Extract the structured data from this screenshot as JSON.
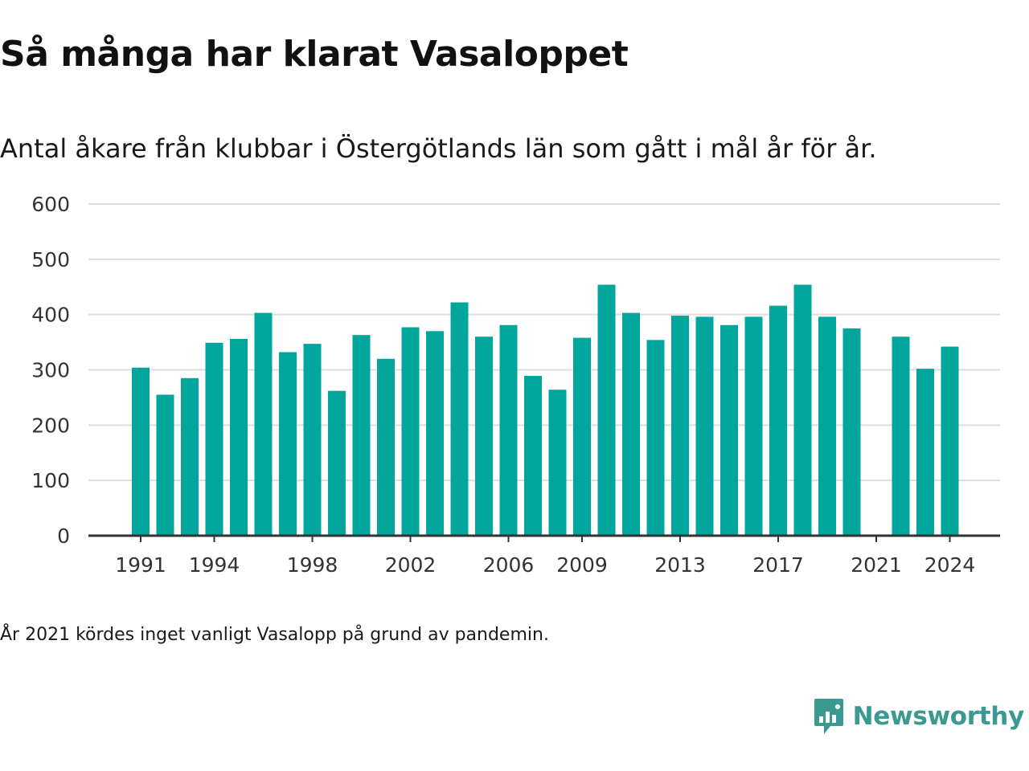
{
  "title": "Så många har klarat Vasaloppet",
  "subtitle": "Antal åkare från klubbar i Östergötlands län som gått i mål år för år.",
  "note": "År 2021 kördes inget vanligt Vasalopp på grund av pandemin.",
  "brand": {
    "name": "Newsworthy",
    "logo_icon": "newsworthy-logo-icon",
    "color": "#3a9a92"
  },
  "colors": {
    "bar": "#00a59b",
    "grid": "#dddddd",
    "axis": "#333333",
    "text": "#333333"
  },
  "chart_data": {
    "type": "bar",
    "title": "",
    "xlabel": "",
    "ylabel": "",
    "ylim": [
      0,
      600
    ],
    "yticks": [
      0,
      100,
      200,
      300,
      400,
      500,
      600
    ],
    "xticks": [
      1991,
      1994,
      1998,
      2002,
      2006,
      2009,
      2013,
      2017,
      2021,
      2024
    ],
    "grid": true,
    "categories": [
      1991,
      1992,
      1993,
      1994,
      1995,
      1996,
      1997,
      1998,
      1999,
      2000,
      2001,
      2002,
      2003,
      2004,
      2005,
      2006,
      2007,
      2008,
      2009,
      2010,
      2011,
      2012,
      2013,
      2014,
      2015,
      2016,
      2017,
      2018,
      2019,
      2020,
      2021,
      2022,
      2023,
      2024
    ],
    "values": [
      304,
      255,
      285,
      349,
      356,
      403,
      332,
      347,
      262,
      363,
      320,
      377,
      370,
      422,
      360,
      381,
      289,
      264,
      358,
      454,
      403,
      354,
      398,
      396,
      381,
      396,
      416,
      454,
      396,
      375,
      null,
      360,
      302,
      342
    ]
  }
}
